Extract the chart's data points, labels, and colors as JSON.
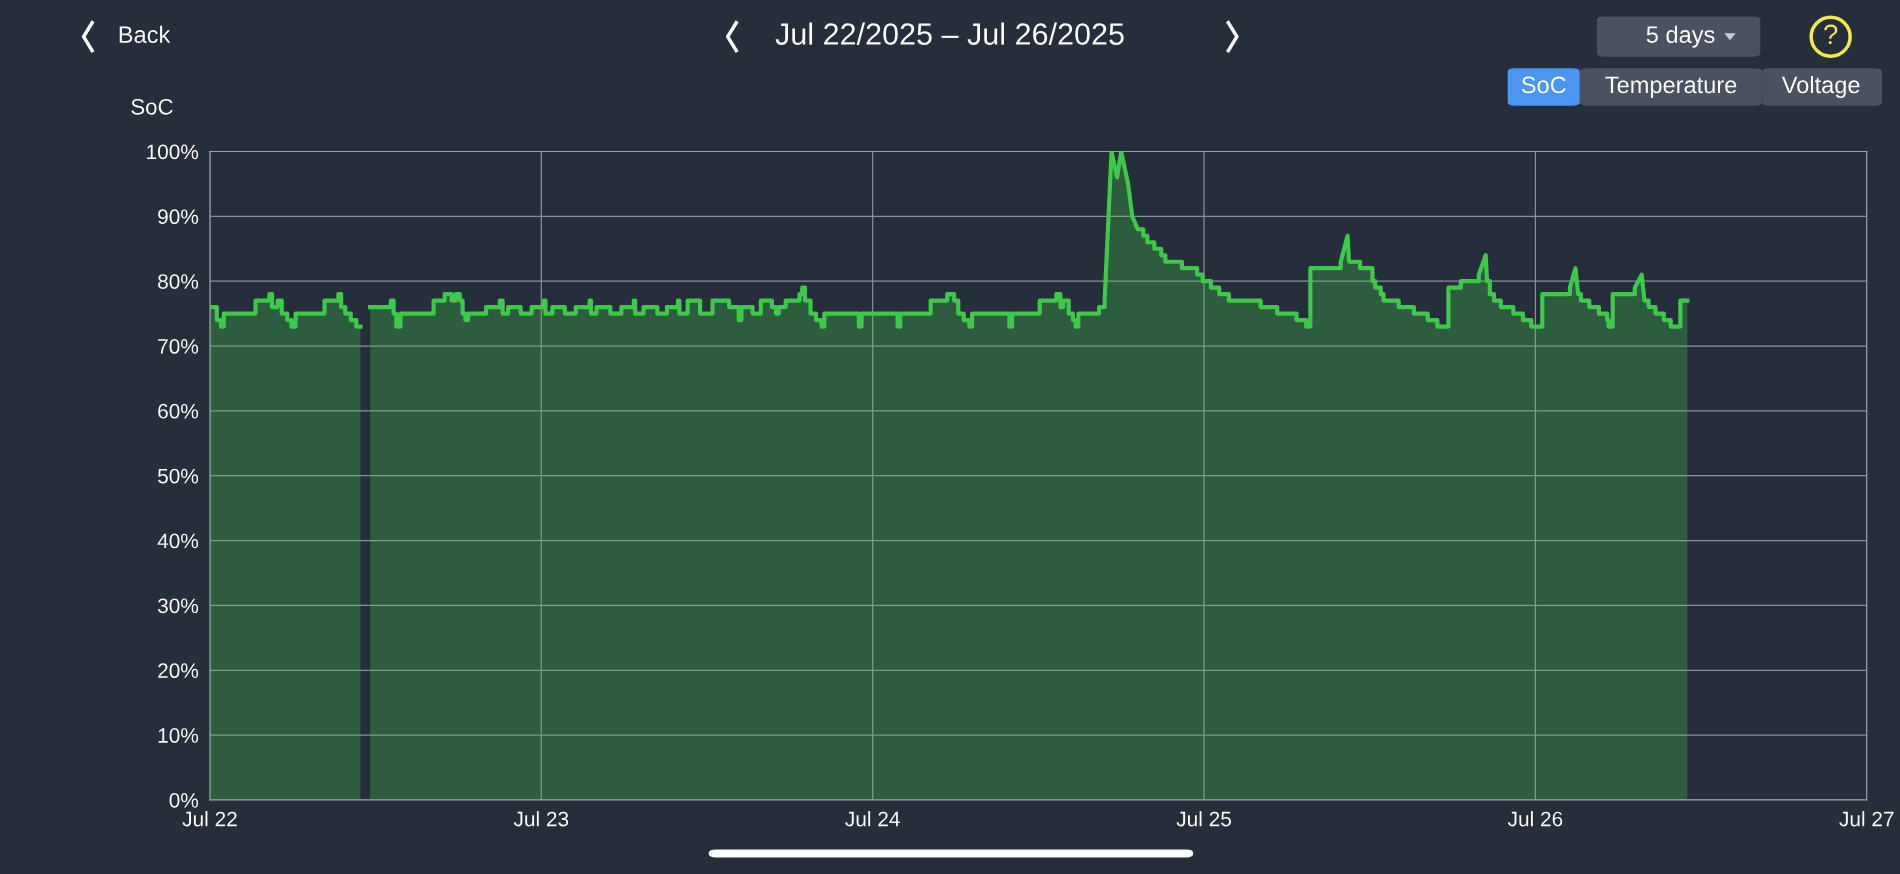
{
  "chart_data": {
    "type": "area",
    "title": "Jul 22/2025 – Jul 26/2025",
    "ylabel": "SoC",
    "annotations": [
      "Back",
      "5 days",
      "SoC",
      "Temperature",
      "Voltage",
      "?"
    ],
    "series": [
      {
        "color": "#3ec94a",
        "x": [
          "2025-07-22T00:00",
          "2025-07-22T00:30",
          "2025-07-22T00:30",
          "2025-07-22T00:48",
          "2025-07-22T00:48",
          "2025-07-22T01:00",
          "2025-07-22T01:00",
          "2025-07-22T03:18",
          "2025-07-22T03:18",
          "2025-07-22T04:18",
          "2025-07-22T04:18",
          "2025-07-22T04:30",
          "2025-07-22T04:30",
          "2025-07-22T04:54",
          "2025-07-22T04:54",
          "2025-07-22T05:12",
          "2025-07-22T05:12",
          "2025-07-22T05:36",
          "2025-07-22T05:36",
          "2025-07-22T05:54",
          "2025-07-22T05:54",
          "2025-07-22T06:12",
          "2025-07-22T06:12",
          "2025-07-22T08:18",
          "2025-07-22T08:18",
          "2025-07-22T09:18",
          "2025-07-22T09:18",
          "2025-07-22T09:30",
          "2025-07-22T09:30",
          "2025-07-22T09:48",
          "2025-07-22T09:48",
          "2025-07-22T10:12",
          "2025-07-22T10:12",
          "2025-07-22T10:36",
          "2025-07-22T10:36",
          "2025-07-22T10:54"
        ],
        "values": [
          76,
          76,
          74,
          74,
          73,
          73,
          75,
          75,
          77,
          77,
          78,
          78,
          76,
          76,
          77,
          77,
          75,
          75,
          74,
          74,
          73,
          73,
          75,
          75,
          77,
          77,
          78,
          78,
          76,
          76,
          75,
          75,
          74,
          74,
          73,
          73
        ]
      },
      {
        "color": "#3ec94a",
        "x": [
          "2025-07-22T11:36",
          "2025-07-22T13:06",
          "2025-07-22T13:06",
          "2025-07-22T13:18",
          "2025-07-22T13:18",
          "2025-07-22T13:30",
          "2025-07-22T13:30",
          "2025-07-22T13:48",
          "2025-07-22T13:48",
          "2025-07-22T16:12",
          "2025-07-22T16:12",
          "2025-07-22T17:00",
          "2025-07-22T17:00",
          "2025-07-22T17:30",
          "2025-07-22T17:30",
          "2025-07-22T17:48",
          "2025-07-22T17:48",
          "2025-07-22T18:06",
          "2025-07-22T18:06",
          "2025-07-22T18:18",
          "2025-07-22T18:18",
          "2025-07-22T18:30",
          "2025-07-22T18:30",
          "2025-07-22T18:42",
          "2025-07-22T18:42",
          "2025-07-22T20:00",
          "2025-07-22T20:00",
          "2025-07-22T21:00",
          "2025-07-22T21:00",
          "2025-07-22T21:12",
          "2025-07-22T21:12",
          "2025-07-22T21:36",
          "2025-07-22T21:36",
          "2025-07-22T22:30",
          "2025-07-22T22:30",
          "2025-07-22T23:18",
          "2025-07-22T23:18",
          "2025-07-23T00:12",
          "2025-07-23T00:12",
          "2025-07-23T00:18",
          "2025-07-23T00:18",
          "2025-07-23T00:48",
          "2025-07-23T00:48",
          "2025-07-23T01:42",
          "2025-07-23T01:42",
          "2025-07-23T02:30",
          "2025-07-23T02:30",
          "2025-07-23T03:30",
          "2025-07-23T03:30",
          "2025-07-23T03:36",
          "2025-07-23T03:36",
          "2025-07-23T04:00",
          "2025-07-23T04:00",
          "2025-07-23T05:00",
          "2025-07-23T05:00",
          "2025-07-23T05:48",
          "2025-07-23T05:48",
          "2025-07-23T06:42",
          "2025-07-23T06:42",
          "2025-07-23T06:48",
          "2025-07-23T06:48",
          "2025-07-23T07:24",
          "2025-07-23T07:24",
          "2025-07-23T08:24",
          "2025-07-23T08:24",
          "2025-07-23T09:06",
          "2025-07-23T09:06",
          "2025-07-23T09:54",
          "2025-07-23T09:54",
          "2025-07-23T10:00",
          "2025-07-23T10:00",
          "2025-07-23T10:36",
          "2025-07-23T10:36",
          "2025-07-23T11:30",
          "2025-07-23T11:30",
          "2025-07-23T12:24",
          "2025-07-23T12:24",
          "2025-07-23T13:36",
          "2025-07-23T13:36",
          "2025-07-23T14:18",
          "2025-07-23T14:18",
          "2025-07-23T14:30",
          "2025-07-23T14:30",
          "2025-07-23T15:18",
          "2025-07-23T15:18",
          "2025-07-23T15:54",
          "2025-07-23T15:54",
          "2025-07-23T16:42",
          "2025-07-23T16:42",
          "2025-07-23T17:00",
          "2025-07-23T17:00",
          "2025-07-23T17:12",
          "2025-07-23T17:12",
          "2025-07-23T17:42",
          "2025-07-23T17:42",
          "2025-07-23T18:42",
          "2025-07-23T18:42",
          "2025-07-23T18:54",
          "2025-07-23T18:54",
          "2025-07-23T19:06",
          "2025-07-23T19:06",
          "2025-07-23T19:30",
          "2025-07-23T19:30",
          "2025-07-23T19:54",
          "2025-07-23T19:54",
          "2025-07-23T20:18",
          "2025-07-23T20:18",
          "2025-07-23T20:30",
          "2025-07-23T20:30",
          "2025-07-23T23:00",
          "2025-07-23T23:00",
          "2025-07-23T23:12",
          "2025-07-23T23:12",
          "2025-07-24T01:48",
          "2025-07-24T01:48",
          "2025-07-24T02:00",
          "2025-07-24T02:00",
          "2025-07-24T04:12",
          "2025-07-24T04:12",
          "2025-07-24T05:24",
          "2025-07-24T05:24",
          "2025-07-24T05:54",
          "2025-07-24T05:54",
          "2025-07-24T06:12",
          "2025-07-24T06:12",
          "2025-07-24T06:36",
          "2025-07-24T06:36",
          "2025-07-24T07:00",
          "2025-07-24T07:00",
          "2025-07-24T07:12",
          "2025-07-24T07:12",
          "2025-07-24T09:54",
          "2025-07-24T09:54",
          "2025-07-24T10:06",
          "2025-07-24T10:06",
          "2025-07-24T12:06",
          "2025-07-24T12:06",
          "2025-07-24T13:18",
          "2025-07-24T13:18",
          "2025-07-24T13:36",
          "2025-07-24T13:36",
          "2025-07-24T13:48",
          "2025-07-24T13:48",
          "2025-07-24T14:12",
          "2025-07-24T14:12",
          "2025-07-24T14:30",
          "2025-07-24T14:30",
          "2025-07-24T14:42",
          "2025-07-24T14:42",
          "2025-07-24T14:54",
          "2025-07-24T14:54",
          "2025-07-24T16:24",
          "2025-07-24T16:24",
          "2025-07-24T16:48",
          "2025-07-24T16:48",
          "2025-07-24T17:18",
          "2025-07-24T17:42",
          "2025-07-24T18:00",
          "2025-07-24T18:30",
          "2025-07-24T18:48",
          "2025-07-24T19:12",
          "2025-07-24T19:36",
          "2025-07-24T19:36",
          "2025-07-24T19:54",
          "2025-07-24T19:54",
          "2025-07-24T20:24",
          "2025-07-24T20:24",
          "2025-07-24T20:54",
          "2025-07-24T20:54",
          "2025-07-24T21:12",
          "2025-07-24T21:12",
          "2025-07-24T22:24",
          "2025-07-24T22:24",
          "2025-07-24T23:30",
          "2025-07-24T23:30",
          "2025-07-24T23:54",
          "2025-07-24T23:54",
          "2025-07-25T00:30",
          "2025-07-25T00:30",
          "2025-07-25T01:06",
          "2025-07-25T01:06",
          "2025-07-25T01:48",
          "2025-07-25T01:48",
          "2025-07-25T04:06",
          "2025-07-25T04:06",
          "2025-07-25T05:18",
          "2025-07-25T05:18",
          "2025-07-25T06:42",
          "2025-07-25T06:42",
          "2025-07-25T07:24",
          "2025-07-25T07:24",
          "2025-07-25T07:42",
          "2025-07-25T07:42",
          "2025-07-25T09:54",
          "2025-07-25T09:54",
          "2025-07-25T10:24",
          "2025-07-25T10:30",
          "2025-07-25T11:18",
          "2025-07-25T11:18",
          "2025-07-25T12:12",
          "2025-07-25T12:12",
          "2025-07-25T12:24",
          "2025-07-25T12:24",
          "2025-07-25T12:48",
          "2025-07-25T12:48",
          "2025-07-25T13:00",
          "2025-07-25T13:00",
          "2025-07-25T14:06",
          "2025-07-25T14:06",
          "2025-07-25T15:12",
          "2025-07-25T15:12",
          "2025-07-25T16:12",
          "2025-07-25T16:12",
          "2025-07-25T16:54",
          "2025-07-25T16:54",
          "2025-07-25T17:42",
          "2025-07-25T17:42",
          "2025-07-25T18:36",
          "2025-07-25T18:36",
          "2025-07-25T19:54",
          "2025-07-25T19:54",
          "2025-07-25T20:24",
          "2025-07-25T20:30",
          "2025-07-25T20:42",
          "2025-07-25T20:42",
          "2025-07-25T21:00",
          "2025-07-25T21:00",
          "2025-07-25T21:30",
          "2025-07-25T21:30",
          "2025-07-25T22:24",
          "2025-07-25T22:24",
          "2025-07-25T23:06",
          "2025-07-25T23:06",
          "2025-07-25T23:42",
          "2025-07-25T23:42",
          "2025-07-26T00:30",
          "2025-07-26T00:30",
          "2025-07-26T02:30",
          "2025-07-26T02:30",
          "2025-07-26T02:54",
          "2025-07-26T03:06",
          "2025-07-26T03:18",
          "2025-07-26T03:18",
          "2025-07-26T03:54",
          "2025-07-26T03:54",
          "2025-07-26T04:36",
          "2025-07-26T04:36",
          "2025-07-26T05:12",
          "2025-07-26T05:12",
          "2025-07-26T05:18",
          "2025-07-26T05:18",
          "2025-07-26T05:36",
          "2025-07-26T05:36",
          "2025-07-26T07:12",
          "2025-07-26T07:12",
          "2025-07-26T07:42",
          "2025-07-26T07:54",
          "2025-07-26T08:12",
          "2025-07-26T08:12",
          "2025-07-26T08:42",
          "2025-07-26T08:42",
          "2025-07-26T09:18",
          "2025-07-26T09:18",
          "2025-07-26T09:48",
          "2025-07-26T09:48",
          "2025-07-26T10:30",
          "2025-07-26T10:30",
          "2025-07-26T11:00"
        ],
        "values": [
          76,
          76,
          77,
          77,
          75,
          75,
          73,
          73,
          75,
          75,
          77,
          77,
          78,
          78,
          77,
          77,
          78,
          78,
          77,
          77,
          75,
          75,
          74,
          74,
          75,
          75,
          76,
          76,
          77,
          77,
          75,
          75,
          76,
          76,
          75,
          75,
          76,
          76,
          77,
          77,
          75,
          75,
          76,
          76,
          75,
          75,
          76,
          76,
          77,
          77,
          75,
          75,
          76,
          76,
          75,
          75,
          76,
          76,
          77,
          77,
          75,
          75,
          76,
          76,
          75,
          75,
          76,
          76,
          77,
          77,
          75,
          75,
          77,
          77,
          75,
          75,
          77,
          77,
          76,
          76,
          74,
          74,
          76,
          76,
          75,
          75,
          77,
          77,
          76,
          76,
          75,
          75,
          76,
          76,
          77,
          77,
          78,
          78,
          79,
          79,
          77,
          77,
          75,
          75,
          74,
          74,
          73,
          73,
          75,
          75,
          73,
          73,
          75,
          75,
          73,
          73,
          75,
          75,
          77,
          77,
          78,
          78,
          77,
          77,
          75,
          75,
          74,
          74,
          73,
          73,
          75,
          75,
          73,
          73,
          75,
          75,
          77,
          77,
          78,
          78,
          76,
          76,
          77,
          77,
          75,
          75,
          74,
          74,
          73,
          73,
          75,
          75,
          76,
          76,
          77,
          100,
          96,
          100,
          95,
          90,
          88,
          88,
          87,
          87,
          86,
          86,
          85,
          85,
          84,
          84,
          83,
          83,
          82,
          82,
          81,
          81,
          80,
          80,
          79,
          79,
          78,
          78,
          77,
          77,
          76,
          76,
          75,
          75,
          74,
          74,
          73,
          73,
          82,
          82,
          83,
          87,
          83,
          83,
          82,
          82,
          80,
          80,
          79,
          79,
          78,
          78,
          77,
          77,
          76,
          76,
          75,
          75,
          74,
          74,
          73,
          73,
          79,
          79,
          80,
          80,
          81,
          84,
          80,
          80,
          78,
          78,
          77,
          77,
          76,
          76,
          75,
          75,
          74,
          74,
          73,
          73,
          78,
          78,
          79,
          82,
          78,
          78,
          77,
          77,
          76,
          76,
          75,
          75,
          74,
          74,
          73,
          73,
          78,
          78,
          79,
          81,
          77,
          77,
          76,
          76,
          75,
          75,
          74,
          74,
          73,
          73,
          77,
          77
        ]
      }
    ],
    "xlim": [
      "2025-07-22",
      "2025-07-27"
    ],
    "xticks": [
      {
        "value": "2025-07-22",
        "label": "Jul 22"
      },
      {
        "value": "2025-07-23",
        "label": "Jul 23"
      },
      {
        "value": "2025-07-24",
        "label": "Jul 24"
      },
      {
        "value": "2025-07-25",
        "label": "Jul 25"
      },
      {
        "value": "2025-07-26",
        "label": "Jul 26"
      },
      {
        "value": "2025-07-27",
        "label": "Jul 27"
      }
    ],
    "ylim": [
      0,
      100
    ],
    "yticks": [
      {
        "value": 0,
        "label": "0%"
      },
      {
        "value": 10,
        "label": "10%"
      },
      {
        "value": 20,
        "label": "20%"
      },
      {
        "value": 30,
        "label": "30%"
      },
      {
        "value": 40,
        "label": "40%"
      },
      {
        "value": 50,
        "label": "50%"
      },
      {
        "value": 60,
        "label": "60%"
      },
      {
        "value": 70,
        "label": "70%"
      },
      {
        "value": 80,
        "label": "80%"
      },
      {
        "value": 90,
        "label": "90%"
      },
      {
        "value": 100,
        "label": "100%"
      }
    ],
    "grid": true,
    "legend": false
  }
}
